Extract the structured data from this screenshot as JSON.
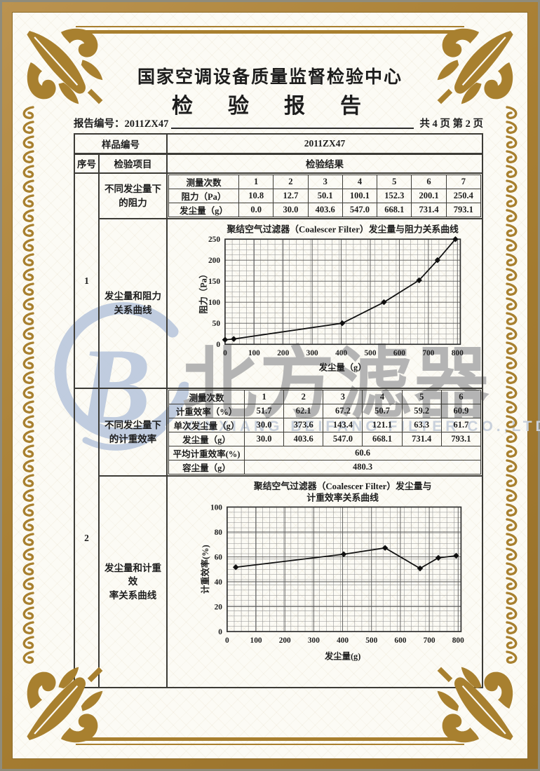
{
  "header": {
    "org_title": "国家空调设备质量监督检验中心",
    "report_title": "检　验　报　告",
    "report_no": "报告编号：2011ZX47",
    "page_info": "共 4 页  第 2 页"
  },
  "table": {
    "sample_label": "样品编号",
    "sample_value": "2011ZX47",
    "seq_header": "序号",
    "item_header": "检验项目",
    "result_header": "检验结果",
    "row1": {
      "seq": "1",
      "item_top": "不同发尘量下\n的阻力",
      "item_chart": "发尘量和阻力\n关系曲线"
    },
    "row2": {
      "seq": "2",
      "item_top": "不同发尘量下\n的计重效率",
      "item_chart": "发尘量和计重效\n率关系曲线"
    }
  },
  "resistance_table": {
    "measure_label": "测量次数",
    "headers": [
      "1",
      "2",
      "3",
      "4",
      "5",
      "6",
      "7"
    ],
    "rows": [
      {
        "label": "阻力（Pa）",
        "values": [
          "10.8",
          "12.7",
          "50.1",
          "100.1",
          "152.3",
          "200.1",
          "250.4"
        ]
      },
      {
        "label": "发尘量（g）",
        "values": [
          "0.0",
          "30.0",
          "403.6",
          "547.0",
          "668.1",
          "731.4",
          "793.1"
        ]
      }
    ]
  },
  "efficiency_table": {
    "measure_label": "测量次数",
    "headers": [
      "1",
      "2",
      "3",
      "4",
      "5",
      "6"
    ],
    "rows": [
      {
        "label": "计重效率（%）",
        "values": [
          "51.7",
          "62.1",
          "67.2",
          "50.7",
          "59.2",
          "60.9"
        ]
      },
      {
        "label": "单次发尘量（g）",
        "values": [
          "30.0",
          "373.6",
          "143.4",
          "121.1",
          "63.3",
          "61.7"
        ]
      },
      {
        "label": "发尘量（g）",
        "values": [
          "30.0",
          "403.6",
          "547.0",
          "668.1",
          "731.4",
          "793.1"
        ]
      }
    ],
    "avg": {
      "label": "平均计重效率(%)",
      "value": "60.6"
    },
    "capacity": {
      "label": "容尘量（g）",
      "value": "480.3"
    }
  },
  "watermark": {
    "logo_letter": "B",
    "cn_text": "北方滤器",
    "en_text": "XINXIANG BEIFANG FILTER CO.,LTD"
  },
  "chart_data": [
    {
      "type": "line",
      "title_lines": [
        "聚结空气过滤器（Coalescer Filter）发尘量与阻力关系曲线"
      ],
      "xlabel": "发尘量（g）",
      "ylabel": "阻力（Pa）",
      "x": [
        0,
        30,
        403.6,
        547.0,
        668.1,
        731.4,
        793.1
      ],
      "y": [
        10.8,
        12.7,
        50.1,
        100.1,
        152.3,
        200.1,
        250.4
      ],
      "xlim": [
        0,
        810
      ],
      "ylim": [
        0,
        250
      ],
      "xticks": [
        0,
        100,
        200,
        300,
        400,
        500,
        600,
        700,
        800
      ],
      "yticks": [
        0,
        50,
        100,
        150,
        200,
        250
      ],
      "grid": true,
      "legend": "none",
      "marker": "diamond"
    },
    {
      "type": "line",
      "title_lines": [
        "聚结空气过滤器（Coalescer Filter）发尘量与",
        "计重效率关系曲线"
      ],
      "xlabel": "发尘量(g)",
      "ylabel": "计重效率(%)",
      "x": [
        30,
        403.6,
        547.0,
        668.1,
        731.4,
        793.1
      ],
      "y": [
        51.7,
        62.1,
        67.2,
        50.7,
        59.2,
        60.9
      ],
      "xlim": [
        0,
        810
      ],
      "ylim": [
        0,
        100
      ],
      "xticks": [
        0,
        100,
        200,
        300,
        400,
        500,
        600,
        700,
        800
      ],
      "yticks": [
        0,
        20,
        40,
        60,
        80,
        100
      ],
      "grid": true,
      "legend": "none",
      "marker": "diamond"
    }
  ]
}
